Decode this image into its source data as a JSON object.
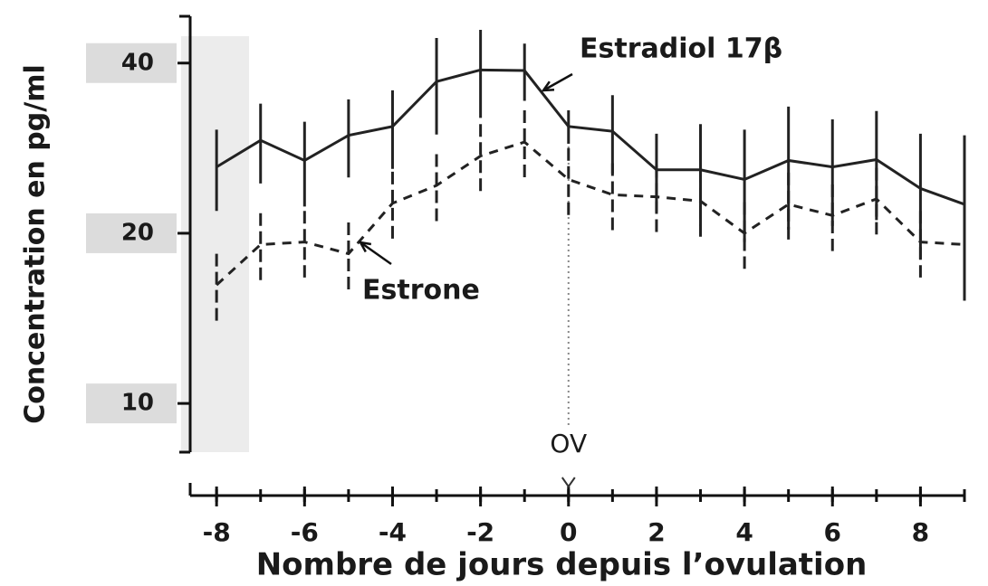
{
  "chart_data": {
    "type": "line",
    "y_label": "Concentration en pg/ml",
    "x_label": "Nombre de jours depuis l’ovulation",
    "annotation": "OV",
    "x": [
      -8,
      -7,
      -6,
      -5,
      -4,
      -3,
      -2,
      -1,
      0,
      1,
      2,
      3,
      4,
      5,
      6,
      7,
      8,
      9
    ],
    "series": [
      {
        "name": "Estradiol 17β",
        "color": "#222222",
        "dashed": false,
        "values": [
          26.2,
          29.2,
          26.9,
          29.8,
          30.9,
          37.1,
          38.9,
          38.8,
          30.9,
          30.3,
          25.9,
          25.9,
          24.9,
          26.9,
          26.2,
          27.0,
          24.0,
          22.5
        ],
        "errors": [
          4.3,
          4.7,
          4.6,
          4.7,
          4.9,
          7.2,
          6.9,
          4.5,
          2.1,
          4.8,
          4.1,
          5.3,
          5.6,
          6.6,
          5.6,
          5.9,
          6.0,
          7.3
        ]
      },
      {
        "name": "Estrone",
        "color": "#222222",
        "dashed": true,
        "values": [
          16.2,
          19.1,
          19.3,
          18.4,
          22.6,
          24.3,
          27.4,
          29.0,
          24.9,
          23.4,
          23.2,
          22.8,
          20.0,
          22.5,
          21.5,
          23.0,
          19.3,
          19.1
        ],
        "errors": [
          2.2,
          2.6,
          2.6,
          2.5,
          3.1,
          3.3,
          3.8,
          4.0,
          3.4,
          3.2,
          3.2,
          3.1,
          2.7,
          3.1,
          2.9,
          3.1,
          2.6,
          2.6
        ]
      }
    ],
    "xlim": [
      -8.6,
      9
    ],
    "xticks": [
      -8,
      -6,
      -4,
      -2,
      0,
      2,
      4,
      6,
      8
    ],
    "ylim": [
      8.2,
      48.4
    ],
    "yticks": [
      10,
      20,
      40
    ],
    "log_y": true,
    "grid": false
  }
}
